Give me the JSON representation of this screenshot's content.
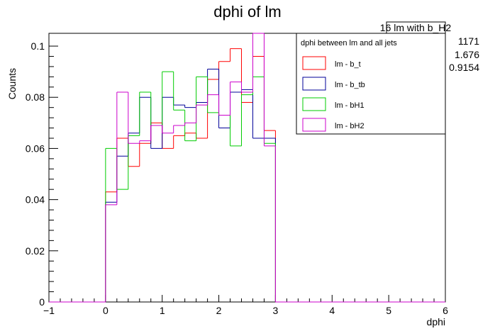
{
  "chart_data": {
    "type": "histogram",
    "title": "dphi of lm",
    "xlabel": "dphi",
    "ylabel": "Counts",
    "xlim": [
      -1,
      6
    ],
    "ylim": [
      0,
      0.105
    ],
    "x_ticks": [
      "−1",
      "0",
      "1",
      "2",
      "3",
      "4",
      "5",
      "6"
    ],
    "y_ticks": [
      "0",
      "0.02",
      "0.04",
      "0.06",
      "0.08",
      "0.1"
    ],
    "bin_edges": [
      -1.0,
      -0.8,
      -0.6,
      -0.4,
      -0.2,
      0.0,
      0.2,
      0.4,
      0.6,
      0.8,
      1.0,
      1.2,
      1.4,
      1.6,
      1.8,
      2.0,
      2.2,
      2.4,
      2.6,
      2.8,
      3.0,
      3.2,
      3.4,
      3.6,
      3.8,
      4.0,
      4.2,
      4.4,
      4.6,
      4.8,
      5.0,
      5.2,
      5.4,
      5.6,
      5.8,
      6.0
    ],
    "legend": {
      "header": "dphi between lm and all jets",
      "placement": "top-right"
    },
    "stats": {
      "title": "16 lm with b_H2",
      "values": [
        "1171",
        "1.676",
        "0.9154"
      ]
    },
    "series": [
      {
        "name": "lm - b_t",
        "color": "#ff0000",
        "values": [
          0,
          0,
          0,
          0,
          0,
          0.043,
          0.064,
          0.053,
          0.062,
          0.07,
          0.06,
          0.065,
          0.066,
          0.064,
          0.087,
          0.094,
          0.099,
          0.078,
          0.096,
          0.067,
          0,
          0,
          0,
          0,
          0,
          0,
          0,
          0,
          0,
          0,
          0,
          0,
          0,
          0,
          0
        ]
      },
      {
        "name": "lm - b_tb",
        "color": "#000099",
        "values": [
          0,
          0,
          0,
          0,
          0,
          0.039,
          0.057,
          0.066,
          0.08,
          0.06,
          0.08,
          0.077,
          0.076,
          0.078,
          0.091,
          0.068,
          0.082,
          0.083,
          0.064,
          0.064,
          0,
          0,
          0,
          0,
          0,
          0,
          0,
          0,
          0,
          0,
          0,
          0,
          0,
          0,
          0
        ]
      },
      {
        "name": "lm - bH1",
        "color": "#00cc00",
        "values": [
          0,
          0,
          0,
          0,
          0,
          0.06,
          0.044,
          0.065,
          0.082,
          0.069,
          0.09,
          0.075,
          0.063,
          0.088,
          0.074,
          0.073,
          0.061,
          0.081,
          0.088,
          0.062,
          0,
          0,
          0,
          0,
          0,
          0,
          0,
          0,
          0,
          0,
          0,
          0,
          0,
          0,
          0
        ]
      },
      {
        "name": "lm - bH2",
        "color": "#cc00cc",
        "values": [
          0,
          0,
          0,
          0,
          0,
          0.038,
          0.082,
          0.062,
          0.063,
          0.069,
          0.066,
          0.069,
          0.07,
          0.077,
          0.081,
          0.073,
          0.086,
          0.082,
          0.105,
          0.061,
          0,
          0,
          0,
          0,
          0,
          0,
          0,
          0,
          0,
          0,
          0,
          0,
          0,
          0,
          0
        ]
      }
    ]
  }
}
